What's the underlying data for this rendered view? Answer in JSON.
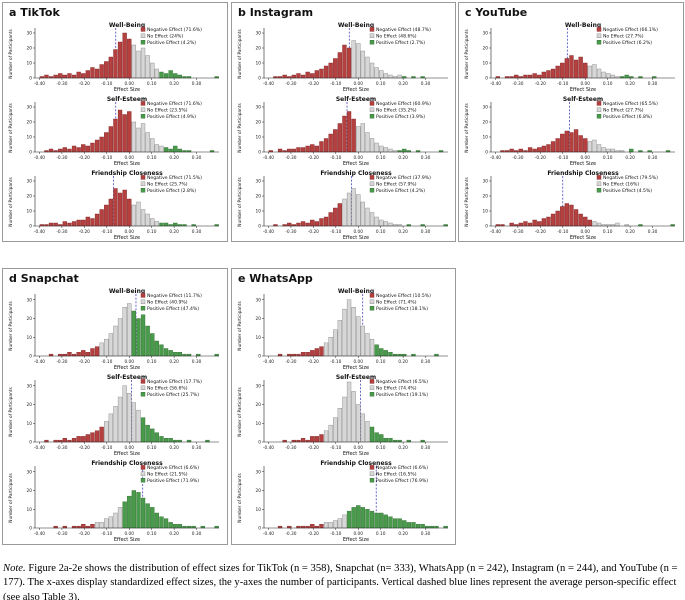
{
  "chart_data": {
    "type": "bar",
    "subtype": "histogram-grid",
    "x_label": "Effect Size",
    "y_label": "Number of Participants",
    "x_ticks": [
      "-0.40",
      "-0.30",
      "-0.20",
      "-0.10",
      "0.00",
      "0.10",
      "0.20",
      "0.30"
    ],
    "x_tick_values": [
      -0.4,
      -0.3,
      -0.2,
      -0.1,
      0.0,
      0.1,
      0.2,
      0.3
    ],
    "y_ticks": [
      0,
      10,
      20,
      30
    ],
    "x_domain": [
      -0.42,
      0.4
    ],
    "bin_width": 0.02,
    "y_max": 32,
    "legend_categories": [
      "Negative Effect",
      "No Effect",
      "Positive Effect"
    ],
    "panels": [
      {
        "key": "tiktok",
        "label": "a TikTok",
        "n": 358,
        "subplots": [
          {
            "title": "Well-Being",
            "mean": -0.06,
            "legend": [
              "Negative Effect (71.6%)",
              "No Effect (24%)",
              "Positive Effect (4.2%)"
            ],
            "splits": [
              21,
              6,
              13
            ],
            "heights": [
              0,
              1,
              2,
              1,
              2,
              3,
              2,
              3,
              2,
              4,
              3,
              5,
              7,
              6,
              9,
              11,
              14,
              19,
              24,
              30,
              26,
              22,
              18,
              20,
              15,
              10,
              6,
              4,
              3,
              5,
              3,
              2,
              1,
              1,
              0,
              0,
              0,
              0,
              0,
              1
            ]
          },
          {
            "title": "Self-Esteem",
            "mean": -0.06,
            "legend": [
              "Negative Effect (71.6%)",
              "No Effect (23.5%)",
              "Positive Effect (4.9%)"
            ],
            "splits": [
              21,
              7,
              12
            ],
            "heights": [
              0,
              0,
              1,
              2,
              1,
              2,
              3,
              2,
              4,
              3,
              5,
              4,
              6,
              8,
              10,
              13,
              17,
              22,
              28,
              25,
              27,
              20,
              16,
              19,
              13,
              9,
              5,
              4,
              3,
              2,
              4,
              2,
              1,
              1,
              0,
              0,
              0,
              0,
              1,
              0
            ]
          },
          {
            "title": "Friendship Closeness",
            "mean": -0.07,
            "legend": [
              "Negative Effect (71.5%)",
              "No Effect (25.7%)",
              "Positive Effect (2.8%)"
            ],
            "splits": [
              21,
              6,
              13
            ],
            "heights": [
              0,
              1,
              1,
              2,
              2,
              1,
              3,
              2,
              3,
              4,
              4,
              6,
              5,
              8,
              11,
              14,
              18,
              25,
              22,
              24,
              18,
              14,
              16,
              11,
              8,
              5,
              3,
              2,
              2,
              1,
              2,
              1,
              1,
              0,
              1,
              0,
              0,
              0,
              0,
              1
            ]
          }
        ]
      },
      {
        "key": "instagram",
        "label": "b Instagram",
        "n": 244,
        "subplots": [
          {
            "title": "Well-Being",
            "mean": -0.04,
            "legend": [
              "Negative Effect (48.7%)",
              "No Effect (48.6%)",
              "Positive Effect (2.7%)"
            ],
            "splits": [
              19,
              11,
              10
            ],
            "heights": [
              0,
              0,
              1,
              1,
              2,
              1,
              2,
              3,
              2,
              4,
              3,
              5,
              6,
              8,
              10,
              13,
              17,
              22,
              20,
              25,
              23,
              18,
              14,
              10,
              7,
              5,
              3,
              2,
              1,
              2,
              1,
              0,
              1,
              0,
              1,
              0,
              0,
              0,
              0,
              0
            ]
          },
          {
            "title": "Self-Esteem",
            "mean": -0.05,
            "legend": [
              "Negative Effect (60.9%)",
              "No Effect (35.2%)",
              "Positive Effect (3.9%)"
            ],
            "splits": [
              20,
              9,
              11
            ],
            "heights": [
              0,
              1,
              0,
              2,
              1,
              2,
              2,
              3,
              3,
              4,
              5,
              4,
              7,
              9,
              12,
              15,
              19,
              24,
              27,
              22,
              17,
              19,
              13,
              9,
              6,
              4,
              3,
              2,
              1,
              1,
              2,
              1,
              0,
              1,
              0,
              0,
              0,
              0,
              1,
              0
            ]
          },
          {
            "title": "Friendship Closeness",
            "mean": -0.03,
            "legend": [
              "Negative Effect (37.9%)",
              "No Effect (57.9%)",
              "Positive Effect (4.2%)"
            ],
            "splits": [
              17,
              14,
              9
            ],
            "heights": [
              0,
              0,
              1,
              0,
              1,
              2,
              1,
              2,
              3,
              2,
              4,
              3,
              5,
              6,
              9,
              12,
              15,
              18,
              22,
              25,
              21,
              16,
              12,
              9,
              6,
              4,
              3,
              2,
              1,
              1,
              0,
              1,
              0,
              0,
              1,
              0,
              0,
              0,
              0,
              1
            ]
          }
        ]
      },
      {
        "key": "youtube",
        "label": "c YouTube",
        "n": 177,
        "subplots": [
          {
            "title": "Well-Being",
            "mean": -0.08,
            "legend": [
              "Negative Effect (66.1%)",
              "No Effect (27.7%)",
              "Positive Effect (6.2%)"
            ],
            "splits": [
              21,
              7,
              12
            ],
            "heights": [
              0,
              1,
              0,
              1,
              1,
              2,
              1,
              2,
              2,
              3,
              2,
              4,
              5,
              6,
              8,
              10,
              13,
              15,
              12,
              14,
              10,
              8,
              9,
              6,
              4,
              3,
              2,
              1,
              1,
              2,
              1,
              0,
              1,
              0,
              0,
              1,
              0,
              0,
              0,
              0
            ]
          },
          {
            "title": "Self-Esteem",
            "mean": -0.07,
            "legend": [
              "Negative Effect (65.5%)",
              "No Effect (27.7%)",
              "Positive Effect (6.8%)"
            ],
            "splits": [
              21,
              8,
              11
            ],
            "heights": [
              0,
              0,
              1,
              1,
              2,
              1,
              2,
              1,
              3,
              2,
              3,
              4,
              5,
              7,
              9,
              12,
              14,
              13,
              15,
              11,
              9,
              7,
              8,
              5,
              3,
              2,
              2,
              1,
              1,
              0,
              2,
              0,
              1,
              0,
              1,
              0,
              0,
              0,
              1,
              0
            ]
          },
          {
            "title": "Friendship Closeness",
            "mean": -0.1,
            "legend": [
              "Negative Effect (79.5%)",
              "No Effect (16%)",
              "Positive Effect (4.5%)"
            ],
            "splits": [
              22,
              9,
              9
            ],
            "heights": [
              0,
              1,
              1,
              0,
              2,
              1,
              2,
              3,
              2,
              4,
              3,
              5,
              6,
              8,
              10,
              13,
              15,
              14,
              11,
              8,
              6,
              4,
              3,
              2,
              1,
              1,
              1,
              2,
              0,
              1,
              0,
              0,
              1,
              0,
              0,
              0,
              0,
              0,
              0,
              1
            ]
          }
        ]
      },
      {
        "key": "snapchat",
        "label": "d Snapchat",
        "n": 333,
        "subplots": [
          {
            "title": "Well-Being",
            "mean": 0.03,
            "legend": [
              "Negative Effect (11.7%)",
              "No Effect (40.9%)",
              "Positive Effect (47.4%)"
            ],
            "splits": [
              14,
              7,
              19
            ],
            "heights": [
              0,
              0,
              0,
              1,
              0,
              1,
              1,
              2,
              1,
              2,
              3,
              2,
              4,
              5,
              7,
              9,
              12,
              16,
              20,
              26,
              28,
              24,
              20,
              22,
              16,
              12,
              8,
              6,
              4,
              3,
              2,
              2,
              1,
              1,
              0,
              1,
              0,
              0,
              0,
              1
            ]
          },
          {
            "title": "Self-Esteem",
            "mean": 0.01,
            "legend": [
              "Negative Effect (17.7%)",
              "No Effect (56.6%)",
              "Positive Effect (25.7%)"
            ],
            "splits": [
              15,
              8,
              17
            ],
            "heights": [
              0,
              0,
              1,
              0,
              1,
              1,
              2,
              1,
              2,
              3,
              3,
              4,
              5,
              6,
              8,
              11,
              15,
              19,
              24,
              30,
              26,
              21,
              17,
              13,
              9,
              7,
              5,
              3,
              2,
              2,
              1,
              1,
              0,
              1,
              0,
              0,
              0,
              1,
              0,
              0
            ]
          },
          {
            "title": "Friendship Closeness",
            "mean": 0.06,
            "legend": [
              "Negative Effect (6.6%)",
              "No Effect (21.5%)",
              "Positive Effect (71.9%)"
            ],
            "splits": [
              13,
              6,
              21
            ],
            "heights": [
              0,
              0,
              0,
              0,
              1,
              0,
              1,
              0,
              1,
              1,
              2,
              1,
              2,
              3,
              3,
              5,
              6,
              8,
              11,
              14,
              17,
              20,
              19,
              16,
              13,
              11,
              8,
              6,
              5,
              3,
              2,
              2,
              1,
              1,
              1,
              0,
              1,
              0,
              0,
              1
            ]
          }
        ]
      },
      {
        "key": "whatsapp",
        "label": "e WhatsApp",
        "n": 242,
        "subplots": [
          {
            "title": "Well-Being",
            "mean": 0.02,
            "legend": [
              "Negative Effect (10.5%)",
              "No Effect (71.4%)",
              "Positive Effect (18.1%)"
            ],
            "splits": [
              13,
              11,
              16
            ],
            "heights": [
              0,
              0,
              0,
              1,
              0,
              1,
              1,
              1,
              2,
              2,
              3,
              4,
              5,
              7,
              10,
              14,
              19,
              25,
              30,
              26,
              21,
              16,
              12,
              9,
              6,
              4,
              3,
              2,
              1,
              1,
              1,
              0,
              1,
              0,
              0,
              0,
              0,
              1,
              0,
              0
            ]
          },
          {
            "title": "Self-Esteem",
            "mean": 0.01,
            "legend": [
              "Negative Effect (6.5%)",
              "No Effect (74.4%)",
              "Positive Effect (19.1%)"
            ],
            "splits": [
              13,
              10,
              17
            ],
            "heights": [
              0,
              0,
              0,
              0,
              1,
              0,
              1,
              1,
              2,
              1,
              3,
              3,
              4,
              6,
              9,
              13,
              18,
              24,
              32,
              27,
              20,
              15,
              11,
              8,
              5,
              4,
              2,
              2,
              1,
              1,
              0,
              1,
              0,
              0,
              1,
              0,
              0,
              0,
              0,
              0
            ]
          },
          {
            "title": "Friendship Closeness",
            "mean": 0.08,
            "legend": [
              "Negative Effect (6.6%)",
              "No Effect (16.5%)",
              "Positive Effect (76.9%)"
            ],
            "splits": [
              13,
              5,
              22
            ],
            "heights": [
              0,
              0,
              0,
              1,
              0,
              1,
              0,
              1,
              1,
              1,
              2,
              1,
              2,
              3,
              3,
              4,
              5,
              7,
              9,
              11,
              12,
              11,
              10,
              9,
              8,
              8,
              7,
              6,
              5,
              5,
              4,
              3,
              3,
              2,
              2,
              1,
              1,
              1,
              0,
              1
            ]
          }
        ]
      }
    ]
  },
  "note": {
    "prefix": "Note.",
    "body": " Figure 2a-2e shows the distribution of effect sizes for TikTok (n = 358), Snapchat (n= 333), WhatsApp (n = 242), Instagram (n = 244), and YouTube (n = 177). The x-axes display standardized effect sizes, the y-axes the number of participants. Vertical dashed blue lines represent the average person-specific effect (see also Table 3)."
  },
  "colors": {
    "negative_fill": "#b54040",
    "negative_edge": "#7c2222",
    "no_effect_fill": "#d7d7d7",
    "no_effect_edge": "#808080",
    "positive_fill": "#4a9a4c",
    "positive_edge": "#2c6b2e",
    "mean_line": "#2b2bb0",
    "axis": "#222222",
    "panel_border": "#9a9a9a"
  }
}
